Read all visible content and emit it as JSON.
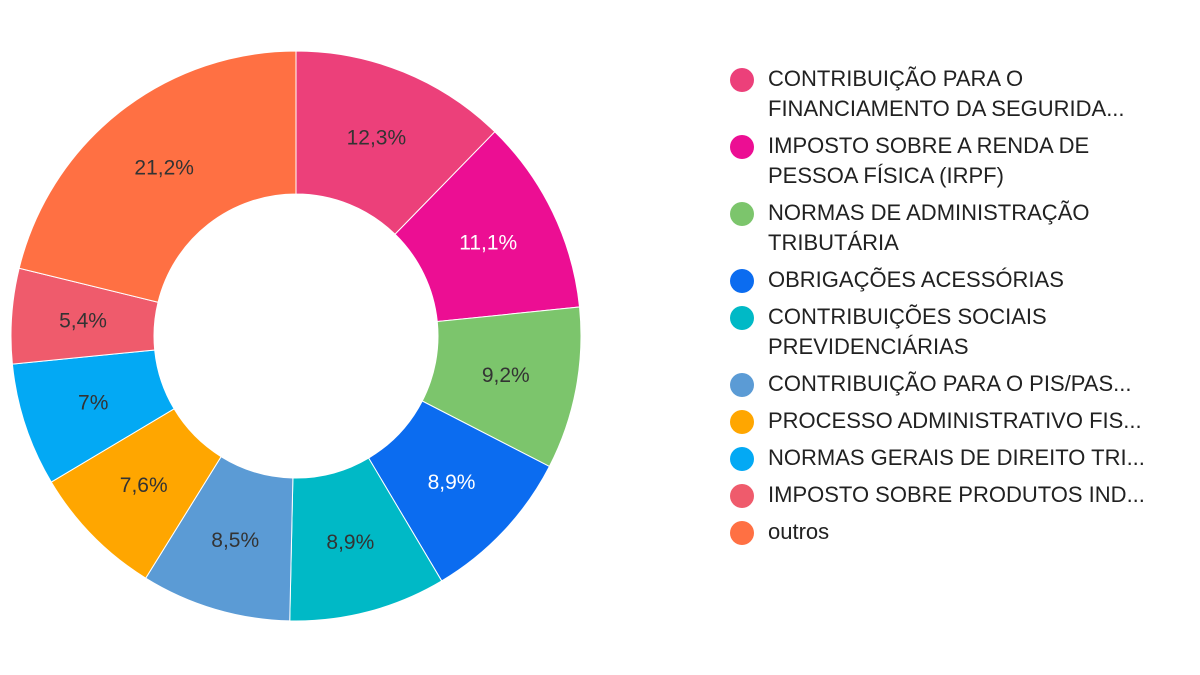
{
  "chart_data": {
    "type": "pie",
    "donut": true,
    "title": "",
    "legend_position": "right",
    "slices": [
      {
        "label": "CONTRIBUIÇÃO PARA O FINANCIAMENTO DA SEGURIDA...",
        "value": 12.3,
        "display": "12,3%",
        "color": "#ec407a",
        "label_color": "#333333"
      },
      {
        "label": "IMPOSTO SOBRE A RENDA DE PESSOA FÍSICA (IRPF)",
        "value": 11.1,
        "display": "11,1%",
        "color": "#ec0e93",
        "label_color": "#ffffff"
      },
      {
        "label": "NORMAS DE ADMINISTRAÇÃO TRIBUTÁRIA",
        "value": 9.2,
        "display": "9,2%",
        "color": "#7cc56c",
        "label_color": "#333333"
      },
      {
        "label": "OBRIGAÇÕES ACESSÓRIAS",
        "value": 8.9,
        "display": "8,9%",
        "color": "#0b6cf0",
        "label_color": "#ffffff"
      },
      {
        "label": "CONTRIBUIÇÕES SOCIAIS PREVIDENCIÁRIAS",
        "value": 8.9,
        "display": "8,9%",
        "color": "#00b9c6",
        "label_color": "#333333"
      },
      {
        "label": "CONTRIBUIÇÃO PARA O PIS/PAS...",
        "value": 8.5,
        "display": "8,5%",
        "color": "#5b9bd5",
        "label_color": "#333333"
      },
      {
        "label": "PROCESSO ADMINISTRATIVO FIS...",
        "value": 7.6,
        "display": "7,6%",
        "color": "#ffa600",
        "label_color": "#333333"
      },
      {
        "label": "NORMAS GERAIS DE DIREITO TRI...",
        "value": 7.0,
        "display": "7%",
        "color": "#03a9f4",
        "label_color": "#333333"
      },
      {
        "label": "IMPOSTO SOBRE PRODUTOS IND...",
        "value": 5.4,
        "display": "5,4%",
        "color": "#ef5b6c",
        "label_color": "#333333"
      },
      {
        "label": "outros",
        "value": 21.2,
        "display": "21,2%",
        "color": "#ff7043",
        "label_color": "#333333"
      }
    ]
  }
}
